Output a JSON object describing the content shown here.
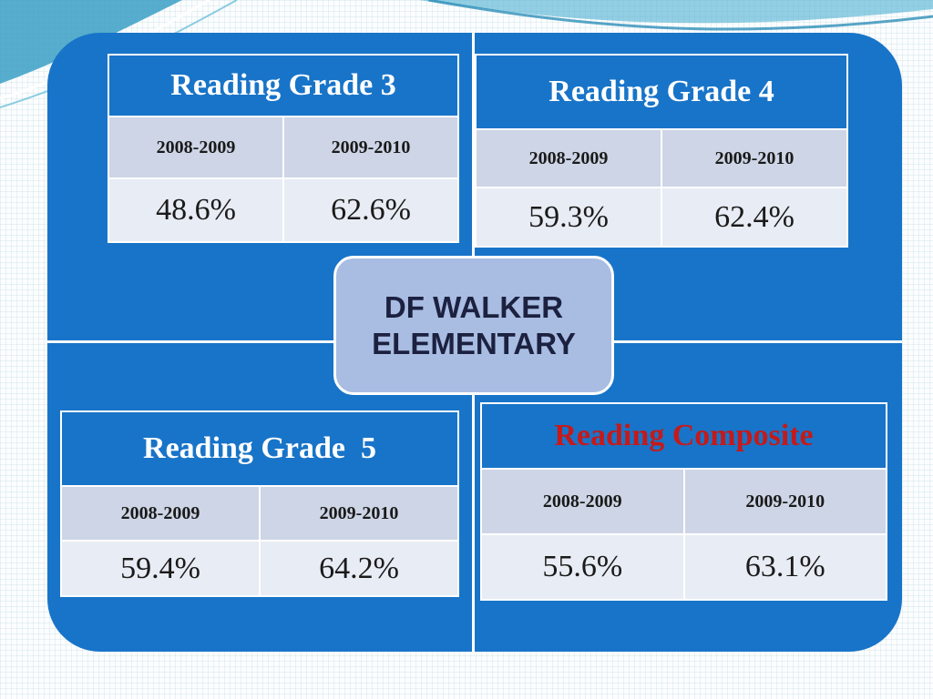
{
  "center": {
    "label_line1": "DF WALKER",
    "label_line2": "ELEMENTARY"
  },
  "tables": [
    {
      "title": "Reading Grade 3",
      "years": [
        "2008-2009",
        "2009-2010"
      ],
      "values": [
        "48.6%",
        "62.6%"
      ]
    },
    {
      "title": "Reading Grade 4",
      "years": [
        "2008-2009",
        "2009-2010"
      ],
      "values": [
        "59.3%",
        "62.4%"
      ]
    },
    {
      "title": "Reading Grade  5",
      "years": [
        "2008-2009",
        "2009-2010"
      ],
      "values": [
        "59.4%",
        "64.2%"
      ]
    },
    {
      "title": "Reading Composite",
      "years": [
        "2008-2009",
        "2009-2010"
      ],
      "values": [
        "55.6%",
        "63.1%"
      ]
    }
  ],
  "colors": {
    "panel_blue": "#1874c8",
    "center_box": "#a9bde3",
    "header_row": "#cdd5e6",
    "value_row": "#e8ecf4",
    "composite_title": "#c41a1a"
  }
}
